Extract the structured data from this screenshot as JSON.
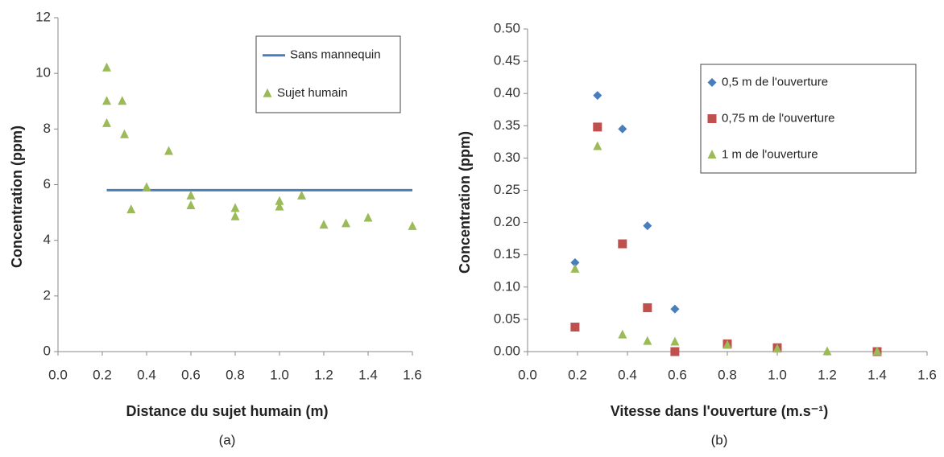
{
  "chart_data": [
    {
      "type": "scatter",
      "caption": "(a)",
      "x_label": "Distance du sujet humain (m)",
      "y_label": "Concentration (ppm)",
      "xlim": [
        0,
        1.6
      ],
      "ylim": [
        0,
        12
      ],
      "xticks": [
        {
          "value": 0,
          "label": "0.0"
        },
        0.2,
        0.4,
        0.6,
        0.8,
        {
          "value": 1,
          "label": "1.0"
        },
        1.2,
        1.4,
        1.6
      ],
      "yticks": [
        0,
        2,
        4,
        6,
        8,
        10,
        12
      ],
      "legend": "upper right",
      "series": [
        {
          "name": "Sans mannequin",
          "color": "#4a7ebb",
          "kind": "line",
          "x": [
            0.22,
            1.6
          ],
          "values": [
            5.8,
            5.8
          ]
        },
        {
          "name": "Sujet humain",
          "color": "#9bbb59",
          "marker": "triangle",
          "x": [
            0.22,
            0.22,
            0.22,
            0.29,
            0.3,
            0.33,
            0.4,
            0.5,
            0.6,
            0.6,
            0.8,
            0.8,
            1.0,
            1.0,
            1.1,
            1.2,
            1.3,
            1.4,
            1.6
          ],
          "values": [
            10.2,
            9.0,
            8.2,
            9.0,
            7.8,
            5.1,
            5.9,
            7.2,
            5.6,
            5.25,
            5.15,
            4.85,
            5.4,
            5.2,
            5.6,
            4.55,
            4.6,
            4.8,
            4.5
          ]
        }
      ]
    },
    {
      "type": "scatter",
      "caption": "(b)",
      "x_label": "Vitesse dans l'ouverture (m.s⁻¹)",
      "y_label": "Concentration (ppm)",
      "xlim": [
        0,
        1.6
      ],
      "ylim": [
        0,
        0.5
      ],
      "xticks": [
        {
          "value": 0,
          "label": "0.0"
        },
        0.2,
        0.4,
        0.6,
        0.8,
        {
          "value": 1,
          "label": "1.0"
        },
        1.2,
        1.4,
        1.6
      ],
      "yticks": [
        {
          "value": 0,
          "label": "0.00"
        },
        0.05,
        {
          "value": 0.1,
          "label": "0.10"
        },
        0.15,
        {
          "value": 0.2,
          "label": "0.20"
        },
        0.25,
        {
          "value": 0.3,
          "label": "0.30"
        },
        0.35,
        {
          "value": 0.4,
          "label": "0.40"
        },
        0.45,
        {
          "value": 0.5,
          "label": "0.50"
        }
      ],
      "legend": "upper right",
      "series": [
        {
          "name": "0,5 m de l'ouverture",
          "color": "#4a7ebb",
          "marker": "diamond",
          "x": [
            0.19,
            0.28,
            0.38,
            0.48,
            0.59
          ],
          "values": [
            0.138,
            0.397,
            0.345,
            0.195,
            0.066
          ]
        },
        {
          "name": "0,75 m de l'ouverture",
          "color": "#c0504d",
          "marker": "square",
          "x": [
            0.19,
            0.28,
            0.38,
            0.48,
            0.59,
            0.8,
            1.0,
            1.4
          ],
          "values": [
            0.038,
            0.348,
            0.167,
            0.068,
            0.0,
            0.012,
            0.006,
            0.0
          ]
        },
        {
          "name": "1 m de l'ouverture",
          "color": "#9bbb59",
          "marker": "triangle",
          "x": [
            0.19,
            0.28,
            0.38,
            0.48,
            0.59,
            0.8,
            1.0,
            1.2,
            1.4
          ],
          "values": [
            0.128,
            0.318,
            0.026,
            0.016,
            0.015,
            0.01,
            0.004,
            0.0,
            0.0
          ]
        }
      ]
    }
  ]
}
